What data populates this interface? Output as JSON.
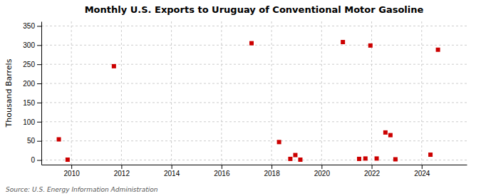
{
  "chart_data": {
    "type": "scatter",
    "title": "Monthly U.S. Exports to Uruguay of Conventional Motor Gasoline",
    "y_label": "Thousand Barrels",
    "annotations": [
      "Source: U.S. Energy Information Administration"
    ],
    "x": [
      2009.5,
      2009.85,
      2011.7,
      2017.2,
      2018.3,
      2018.75,
      2018.95,
      2019.15,
      2020.85,
      2021.5,
      2021.75,
      2021.95,
      2022.2,
      2022.55,
      2022.75,
      2022.95,
      2024.35,
      2024.65
    ],
    "values": [
      54,
      1,
      245,
      305,
      47,
      3,
      13,
      1,
      308,
      3,
      4,
      299,
      4,
      72,
      65,
      2,
      14,
      288
    ],
    "color": "#cc0000",
    "marker": "square",
    "xlim": [
      2008.8,
      2025.8
    ],
    "ylim": [
      -12,
      362
    ],
    "xticks": [
      2010,
      2012,
      2014,
      2016,
      2018,
      2020,
      2022,
      2024
    ],
    "yticks": [
      0,
      50,
      100,
      150,
      200,
      250,
      300,
      350
    ],
    "grid": true
  }
}
